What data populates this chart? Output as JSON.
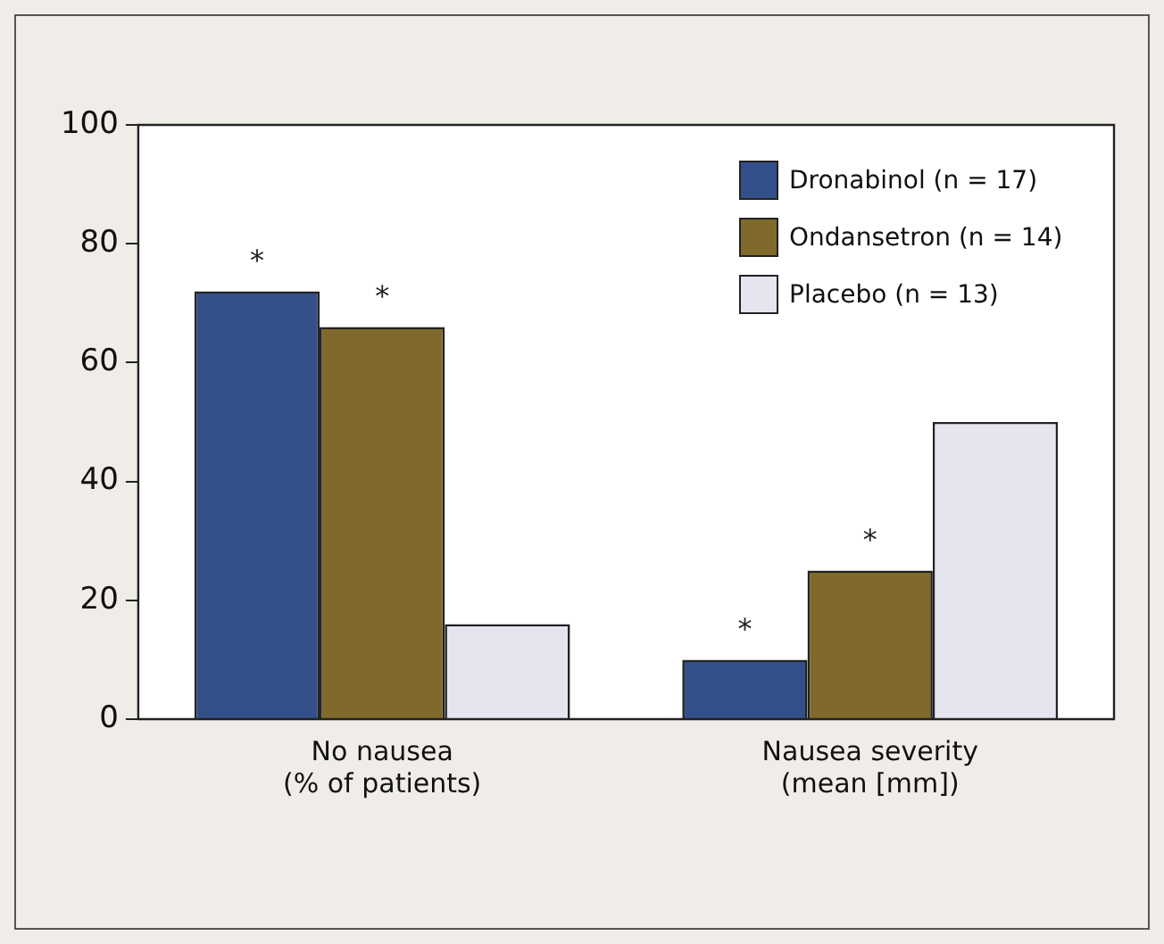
{
  "chart_data": {
    "type": "bar",
    "categories": [
      "No nausea\n(% of patients)",
      "Nausea severity\n(mean [mm])"
    ],
    "series": [
      {
        "name": "Dronabinol (n = 17)",
        "color": "#34508a",
        "values": [
          72,
          10
        ],
        "value_labels": [
          "*",
          "*"
        ]
      },
      {
        "name": "Ondansetron (n = 14)",
        "color": "#7f6a2b",
        "values": [
          66,
          25
        ],
        "value_labels": [
          "*",
          "*"
        ]
      },
      {
        "name": "Placebo (n = 13)",
        "color": "#e5e5ef",
        "values": [
          16,
          50
        ],
        "value_labels": [
          null,
          null
        ]
      }
    ],
    "ylim": [
      0,
      100
    ],
    "yticks": [
      0,
      20,
      40,
      60,
      80,
      100
    ],
    "grid": false,
    "legend": "top right"
  }
}
